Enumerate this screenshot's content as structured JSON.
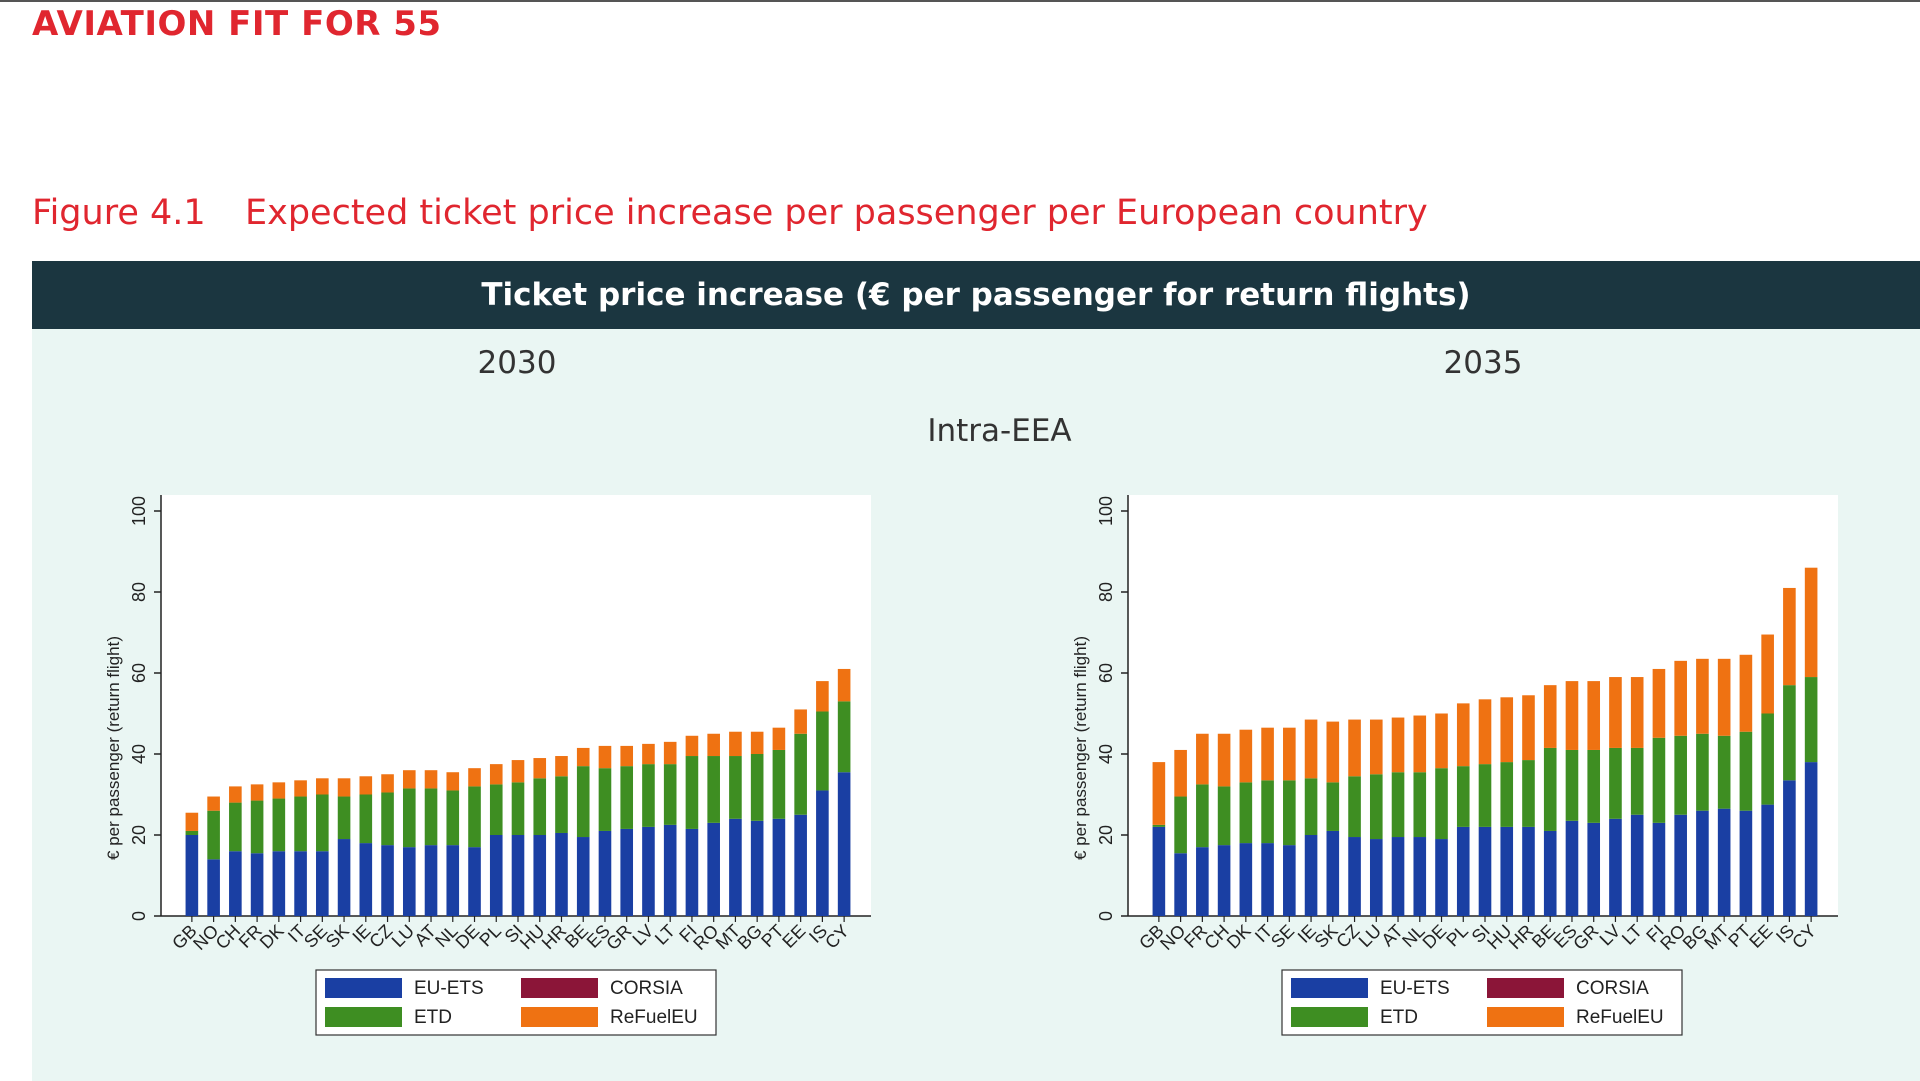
{
  "header": {
    "brand": "AVIATION FIT FOR 55"
  },
  "figure": {
    "number": "Figure 4.1",
    "caption": "Expected ticket price increase per passenger per European country",
    "banner": "Ticket price increase (€ per passenger for return flights)",
    "region": "Intra-EEA"
  },
  "colors": {
    "EU-ETS": "#1a3fa3",
    "ETD": "#3e8e22",
    "CORSIA": "#8b1538",
    "ReFuelEU": "#ef7212"
  },
  "chart_data": [
    {
      "type": "bar",
      "stacked": true,
      "title": "2030",
      "ylabel": "€ per passenger (return flight)",
      "ylim": [
        0,
        100
      ],
      "yticks": [
        0,
        20,
        40,
        60,
        80,
        100
      ],
      "legend": [
        "EU-ETS",
        "CORSIA",
        "ETD",
        "ReFuelEU"
      ],
      "legend_position": "bottom",
      "categories": [
        "GB",
        "NO",
        "CH",
        "FR",
        "DK",
        "IT",
        "SE",
        "SK",
        "IE",
        "CZ",
        "LU",
        "AT",
        "NL",
        "DE",
        "PL",
        "SI",
        "HU",
        "HR",
        "BE",
        "ES",
        "GR",
        "LV",
        "LT",
        "FI",
        "RO",
        "MT",
        "BG",
        "PT",
        "EE",
        "IS",
        "CY"
      ],
      "series": [
        {
          "name": "EU-ETS",
          "values": [
            20,
            14,
            16,
            15.5,
            16,
            16,
            16,
            19,
            18,
            17.5,
            17,
            17.5,
            17.5,
            17,
            20,
            20,
            20,
            20.5,
            19.5,
            21,
            21.5,
            22,
            22.5,
            21.5,
            23,
            24,
            23.5,
            24,
            25,
            31,
            35.5
          ]
        },
        {
          "name": "CORSIA",
          "values": [
            0,
            0,
            0,
            0,
            0,
            0,
            0,
            0,
            0,
            0,
            0,
            0,
            0,
            0,
            0,
            0,
            0,
            0,
            0,
            0,
            0,
            0,
            0,
            0,
            0,
            0,
            0,
            0,
            0,
            0,
            0
          ]
        },
        {
          "name": "ETD",
          "values": [
            1,
            12,
            12,
            13,
            13,
            13.5,
            14,
            10.5,
            12,
            13,
            14.5,
            14,
            13.5,
            15,
            12.5,
            13,
            14,
            14,
            17.5,
            15.5,
            15.5,
            15.5,
            15,
            18,
            16.5,
            15.5,
            16.5,
            17,
            20,
            19.5,
            17.5
          ]
        },
        {
          "name": "ReFuelEU",
          "values": [
            4.5,
            3.5,
            4,
            4,
            4,
            4,
            4,
            4.5,
            4.5,
            4.5,
            4.5,
            4.5,
            4.5,
            4.5,
            5,
            5.5,
            5,
            5,
            4.5,
            5.5,
            5,
            5,
            5.5,
            5,
            5.5,
            6,
            5.5,
            5.5,
            6,
            7.5,
            8
          ]
        }
      ]
    },
    {
      "type": "bar",
      "stacked": true,
      "title": "2035",
      "ylabel": "€ per passenger (return flight)",
      "ylim": [
        0,
        100
      ],
      "yticks": [
        0,
        20,
        40,
        60,
        80,
        100
      ],
      "legend": [
        "EU-ETS",
        "CORSIA",
        "ETD",
        "ReFuelEU"
      ],
      "legend_position": "bottom",
      "categories": [
        "GB",
        "NO",
        "FR",
        "CH",
        "DK",
        "IT",
        "SE",
        "IE",
        "SK",
        "CZ",
        "LU",
        "AT",
        "NL",
        "DE",
        "PL",
        "SI",
        "HU",
        "HR",
        "BE",
        "ES",
        "GR",
        "LV",
        "LT",
        "FI",
        "RO",
        "BG",
        "MT",
        "PT",
        "EE",
        "IS",
        "CY"
      ],
      "series": [
        {
          "name": "EU-ETS",
          "values": [
            22,
            15.5,
            17,
            17.5,
            18,
            18,
            17.5,
            20,
            21,
            19.5,
            19,
            19.5,
            19.5,
            19,
            22,
            22,
            22,
            22,
            21,
            23.5,
            23,
            24,
            25,
            23,
            25,
            26,
            26.5,
            26,
            27.5,
            33.5,
            38
          ]
        },
        {
          "name": "CORSIA",
          "values": [
            0,
            0,
            0,
            0,
            0,
            0,
            0,
            0,
            0,
            0,
            0,
            0,
            0,
            0,
            0,
            0,
            0,
            0,
            0,
            0,
            0,
            0,
            0,
            0,
            0,
            0,
            0,
            0,
            0,
            0,
            0
          ]
        },
        {
          "name": "ETD",
          "values": [
            0.5,
            14,
            15.5,
            14.5,
            15,
            15.5,
            16,
            14,
            12,
            15,
            16,
            16,
            16,
            17.5,
            15,
            15.5,
            16,
            16.5,
            20.5,
            17.5,
            18,
            17.5,
            16.5,
            21,
            19.5,
            19,
            18,
            19.5,
            22.5,
            23.5,
            21
          ]
        },
        {
          "name": "ReFuelEU",
          "values": [
            15.5,
            11.5,
            12.5,
            13,
            13,
            13,
            13,
            14.5,
            15,
            14,
            13.5,
            13.5,
            14,
            13.5,
            15.5,
            16,
            16,
            16,
            15.5,
            17,
            17,
            17.5,
            17.5,
            17,
            18.5,
            18.5,
            19,
            19,
            19.5,
            24,
            27
          ]
        }
      ]
    }
  ]
}
